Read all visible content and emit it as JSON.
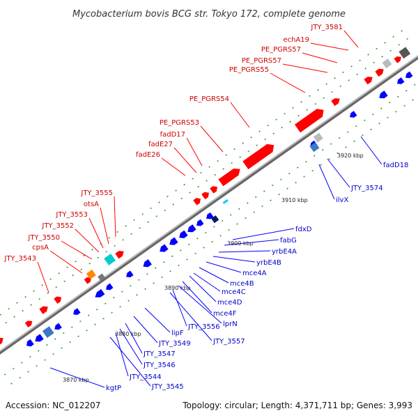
{
  "title": "Mycobacterium bovis BCG str. Tokyo 172, complete genome",
  "footer": {
    "accession": "Accession: NC_012207",
    "summary": "Topology: circular; Length: 4,371,711 bp; Genes: 3,993"
  },
  "colors": {
    "forward": "#ff0000",
    "reverse": "#0000ff",
    "backbone": "#888888",
    "tick": "#1a8a1a",
    "forward_label": "#cc0000",
    "reverse_label": "#0000cc"
  },
  "scale": {
    "ticks": [
      {
        "label": "3870 kbp",
        "kbp": 3870
      },
      {
        "label": "3880 kbp",
        "kbp": 3880
      },
      {
        "label": "3890 kbp",
        "kbp": 3890
      },
      {
        "label": "3900 kbp",
        "kbp": 3900
      },
      {
        "label": "3910 kbp",
        "kbp": 3910
      },
      {
        "label": "3920 kbp",
        "kbp": 3920
      }
    ]
  },
  "forward_labels": [
    {
      "text": "JTY_3581"
    },
    {
      "text": "echA19"
    },
    {
      "text": "PE_PGRS57"
    },
    {
      "text": "PE_PGRS57"
    },
    {
      "text": "PE_PGRS55"
    },
    {
      "text": "PE_PGRS54"
    },
    {
      "text": "PE_PGRS53"
    },
    {
      "text": "fadD17"
    },
    {
      "text": "fadE27"
    },
    {
      "text": "fadE26"
    },
    {
      "text": "JTY_3555"
    },
    {
      "text": "otsA"
    },
    {
      "text": "JTY_3553"
    },
    {
      "text": "JTY_3552"
    },
    {
      "text": "JTY_3550"
    },
    {
      "text": "cpsA"
    },
    {
      "text": "JTY_3543"
    }
  ],
  "reverse_labels": [
    {
      "text": "fadD18"
    },
    {
      "text": "JTY_3574"
    },
    {
      "text": "ilvX"
    },
    {
      "text": "fdxD"
    },
    {
      "text": "fabG"
    },
    {
      "text": "yrbE4A"
    },
    {
      "text": "yrbE4B"
    },
    {
      "text": "mce4A"
    },
    {
      "text": "mce4B"
    },
    {
      "text": "mce4C"
    },
    {
      "text": "mce4D"
    },
    {
      "text": "mce4F"
    },
    {
      "text": "lprN"
    },
    {
      "text": "JTY_3556"
    },
    {
      "text": "JTY_3557"
    },
    {
      "text": "lipF"
    },
    {
      "text": "JTY_3549"
    },
    {
      "text": "JTY_3547"
    },
    {
      "text": "JTY_3546"
    },
    {
      "text": "JTY_3544"
    },
    {
      "text": "JTY_3545"
    },
    {
      "text": "kgtP"
    }
  ]
}
